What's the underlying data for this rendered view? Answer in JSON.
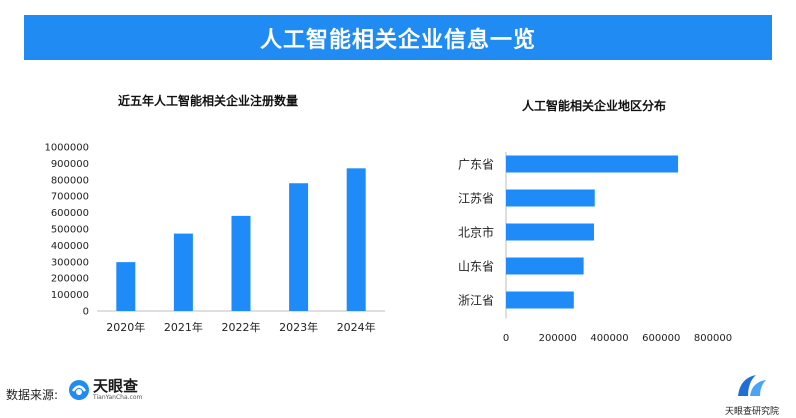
{
  "header": {
    "title": "人工智能相关企业信息一览"
  },
  "colors": {
    "accent": "#1f8bf3",
    "bar": "#1e8bf8",
    "axis": "#bfbfbf"
  },
  "chart_data": [
    {
      "type": "bar",
      "title": "近五年人工智能相关企业注册数量",
      "categories": [
        "2020年",
        "2021年",
        "2022年",
        "2023年",
        "2024年"
      ],
      "values": [
        298000,
        472000,
        580000,
        779000,
        870000
      ],
      "ylim": [
        0,
        1000000
      ],
      "yticks": [
        "0",
        "100000",
        "200000",
        "300000",
        "400000",
        "500000",
        "600000",
        "700000",
        "800000",
        "900000",
        "1000000"
      ],
      "xlabel": "",
      "ylabel": "",
      "grid": false
    },
    {
      "type": "bar",
      "orientation": "horizontal",
      "title": "人工智能相关企业地区分布",
      "categories": [
        "广东省",
        "江苏省",
        "北京市",
        "山东省",
        "浙江省"
      ],
      "values": [
        665000,
        343000,
        340000,
        300000,
        262000
      ],
      "xlim": [
        0,
        800000
      ],
      "xticks": [
        "0",
        "200000",
        "400000",
        "600000",
        "800000"
      ],
      "xlabel": "",
      "ylabel": "",
      "grid": false
    }
  ],
  "footer": {
    "source_label": "数据来源:",
    "brand_name": "天眼查",
    "brand_url": "TianYanCha.com",
    "org_name": "天眼查研究院"
  },
  "icons": {
    "brand_logo": "tianyancha-logo-icon",
    "org_logo": "research-institute-logo-icon"
  }
}
